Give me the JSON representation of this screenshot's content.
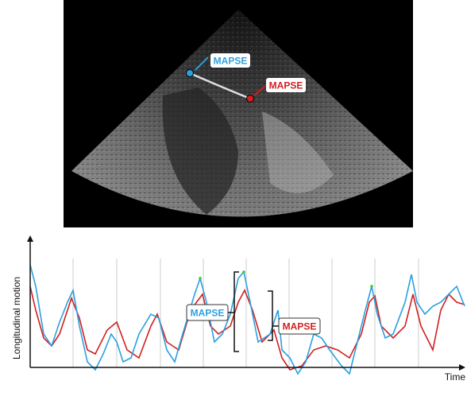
{
  "image": {
    "labels": [
      "MAPSE",
      "MAPSE"
    ]
  },
  "graph": {
    "y_axis_label": "Longitudinal motion",
    "x_axis_label": "Time",
    "labels": [
      "MAPSE",
      "MAPSE"
    ]
  }
}
